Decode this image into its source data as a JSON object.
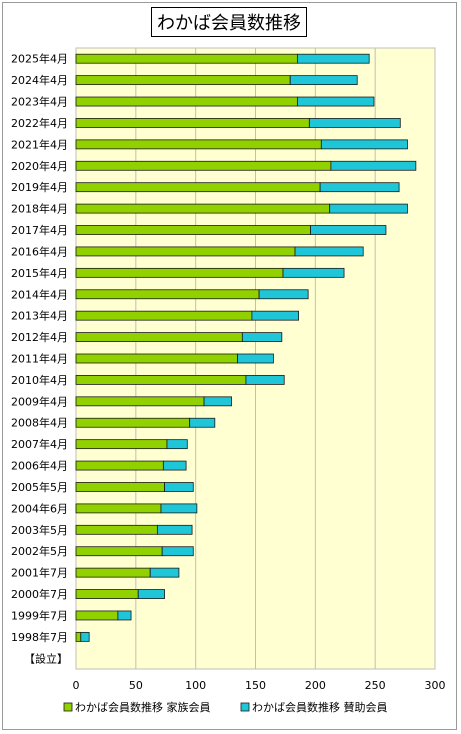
{
  "chart_data": {
    "type": "bar",
    "orientation": "horizontal",
    "stacked": true,
    "title": "わかば会員数推移",
    "categories": [
      "2025年4月",
      "2024年4月",
      "2023年4月",
      "2022年4月",
      "2021年4月",
      "2020年4月",
      "2019年4月",
      "2018年4月",
      "2017年4月",
      "2016年4月",
      "2015年4月",
      "2014年4月",
      "2013年4月",
      "2012年4月",
      "2011年4月",
      "2010年4月",
      "2009年4月",
      "2008年4月",
      "2007年4月",
      "2006年4月",
      "2005年5月",
      "2004年6月",
      "2003年5月",
      "2002年5月",
      "2001年7月",
      "2000年7月",
      "1999年7月",
      "1998年7月",
      "【設立】"
    ],
    "series": [
      {
        "name": "わかば会員数推移 家族会員",
        "color": "#92d100",
        "values": [
          185,
          179,
          185,
          195,
          205,
          213,
          204,
          212,
          196,
          183,
          173,
          153,
          147,
          139,
          135,
          142,
          107,
          95,
          76,
          73,
          74,
          71,
          68,
          72,
          62,
          52,
          35,
          4,
          0
        ]
      },
      {
        "name": "わかば会員数推移 賛助会員",
        "color": "#1fc6d8",
        "values": [
          60,
          56,
          64,
          76,
          72,
          71,
          66,
          65,
          63,
          57,
          51,
          41,
          39,
          33,
          30,
          32,
          23,
          21,
          17,
          19,
          24,
          30,
          29,
          26,
          24,
          22,
          11,
          7,
          0
        ]
      }
    ],
    "xlim": [
      0,
      300
    ],
    "xticks": [
      "0",
      "50",
      "100",
      "150",
      "200",
      "250",
      "300"
    ],
    "plot_background": "#ffffd1",
    "legend": "bottom",
    "grid": true
  }
}
